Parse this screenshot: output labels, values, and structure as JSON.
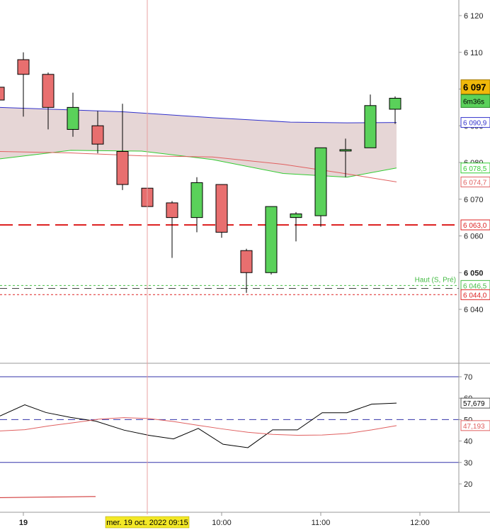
{
  "chart_data": [
    {
      "type": "candlestick",
      "panel": "price",
      "y_axis_ticks": [
        "6 120",
        "6 110",
        "6 100",
        "6 090",
        "6 080",
        "6 070",
        "6 060",
        "6 050",
        "6 040"
      ],
      "ylim": [
        6036,
        6123
      ],
      "last_price": "6 097",
      "countdown": "6m36s",
      "candles": [
        {
          "time": "08:15",
          "open": 6100.5,
          "high": 6104,
          "low": 6093,
          "close": 6097
        },
        {
          "time": "08:30",
          "open": 6108,
          "high": 6110,
          "low": 6092.5,
          "close": 6104
        },
        {
          "time": "08:45",
          "open": 6104,
          "high": 6104.5,
          "low": 6089,
          "close": 6095
        },
        {
          "time": "09:00",
          "open": 6089,
          "high": 6099,
          "low": 6087,
          "close": 6095
        },
        {
          "time": "09:15",
          "open": 6090,
          "high": 6094,
          "low": 6082.5,
          "close": 6085
        },
        {
          "time": "09:30",
          "open": 6083,
          "high": 6096,
          "low": 6072.5,
          "close": 6074
        },
        {
          "time": "09:45",
          "open": 6073,
          "high": 6091,
          "low": 6067,
          "close": 6068
        },
        {
          "time": "10:00",
          "open": 6069,
          "high": 6069.5,
          "low": 6054,
          "close": 6065
        },
        {
          "time": "10:15",
          "open": 6065,
          "high": 6076,
          "low": 6061,
          "close": 6074.5
        },
        {
          "time": "10:30",
          "open": 6074,
          "high": 6074,
          "low": 6059.5,
          "close": 6061
        },
        {
          "time": "10:45",
          "open": 6056,
          "high": 6056.5,
          "low": 6044.5,
          "close": 6050
        },
        {
          "time": "11:00",
          "open": 6050,
          "high": 6068,
          "low": 6049.5,
          "close": 6068
        },
        {
          "time": "11:15",
          "open": 6065,
          "high": 6066.5,
          "low": 6058.5,
          "close": 6066
        },
        {
          "time": "11:30",
          "open": 6065.5,
          "high": 6084,
          "low": 6062.5,
          "close": 6084
        },
        {
          "time": "11:45",
          "open": 6083.5,
          "high": 6086.5,
          "low": 6076,
          "close": 6083.5
        },
        {
          "time": "12:00",
          "open": 6084,
          "high": 6098.5,
          "low": 6084,
          "close": 6095.5
        },
        {
          "time": "12:15",
          "open": 6094.5,
          "high": 6098,
          "low": 6090.5,
          "close": 6097.5
        }
      ],
      "lines": [
        {
          "color": "#3333cc",
          "label": "6 090,9",
          "points": [
            [
              0,
              6095
            ],
            [
              175,
              6093.8
            ],
            [
              300,
              6092.2
            ],
            [
              410,
              6091
            ],
            [
              490,
              6090.8
            ],
            [
              560,
              6090.9
            ]
          ]
        },
        {
          "color": "#33cc33",
          "label": "6 078,5",
          "points": [
            [
              0,
              6081
            ],
            [
              100,
              6083.3
            ],
            [
              200,
              6083.1
            ],
            [
              300,
              6080.8
            ],
            [
              400,
              6077
            ],
            [
              490,
              6076
            ],
            [
              560,
              6078.5
            ]
          ]
        },
        {
          "color": "#e06060",
          "label": "6 074,7",
          "points": [
            [
              0,
              6083
            ],
            [
              100,
              6082.6
            ],
            [
              200,
              6081.8
            ],
            [
              300,
              6081.5
            ],
            [
              400,
              6079.5
            ],
            [
              480,
              6077.2
            ],
            [
              560,
              6074.7
            ]
          ]
        }
      ],
      "levels": [
        {
          "value": 6063.0,
          "label": "6 063,0",
          "color": "#dd2222",
          "style": "long-dash"
        },
        {
          "value": 6046.5,
          "label": "6 046,5",
          "color": "#44bb44",
          "style": "dotted",
          "caption": "Haut (S, Pré)"
        },
        {
          "value": 6045.7,
          "label": "",
          "color": "#444444",
          "style": "long-dash"
        },
        {
          "value": 6044.0,
          "label": "6 044,0",
          "color": "#dd2222",
          "style": "dotted"
        }
      ]
    },
    {
      "type": "line",
      "panel": "oscillator",
      "y_axis_ticks": [
        "70",
        "60",
        "50",
        "40",
        "30",
        "20"
      ],
      "ylim": [
        13,
        74
      ],
      "levels": [
        {
          "value": 70,
          "color": "#3333aa",
          "style": "solid"
        },
        {
          "value": 50,
          "color": "#3333aa",
          "style": "dashed"
        },
        {
          "value": 30,
          "color": "#3333aa",
          "style": "solid"
        }
      ],
      "series": [
        {
          "color": "#000000",
          "label": "57,679",
          "points": [
            [
              0,
              51.7
            ],
            [
              35,
              56.9
            ],
            [
              65,
              53.3
            ],
            [
              100,
              51
            ],
            [
              135,
              49.3
            ],
            [
              175,
              45.1
            ],
            [
              210,
              42.7
            ],
            [
              245,
              41
            ],
            [
              280,
              45.9
            ],
            [
              315,
              38.5
            ],
            [
              350,
              36.9
            ],
            [
              385,
              45.2
            ],
            [
              420,
              45.2
            ],
            [
              455,
              53.2
            ],
            [
              490,
              53.2
            ],
            [
              525,
              57.2
            ],
            [
              560,
              57.7
            ]
          ]
        },
        {
          "color": "#e06060",
          "label": "47,193",
          "points": [
            [
              0,
              44.7
            ],
            [
              35,
              45.3
            ],
            [
              70,
              47.1
            ],
            [
              105,
              48.6
            ],
            [
              140,
              50.2
            ],
            [
              175,
              50.9
            ],
            [
              210,
              50.5
            ],
            [
              245,
              49.1
            ],
            [
              280,
              47.3
            ],
            [
              315,
              45.6
            ],
            [
              350,
              44.1
            ],
            [
              385,
              43.1
            ],
            [
              420,
              42.7
            ],
            [
              455,
              42.8
            ],
            [
              490,
              43.5
            ],
            [
              525,
              45.2
            ],
            [
              560,
              47.2
            ]
          ]
        },
        {
          "color": "#cc2222",
          "label": "",
          "points": [
            [
              0,
              13.6
            ],
            [
              135,
              14.1
            ]
          ]
        }
      ]
    }
  ],
  "time_axis": {
    "labels": [
      "19",
      "10:00",
      "11:00",
      "12:00"
    ],
    "cursor_label": "mer. 19 oct. 2022 09:15"
  }
}
